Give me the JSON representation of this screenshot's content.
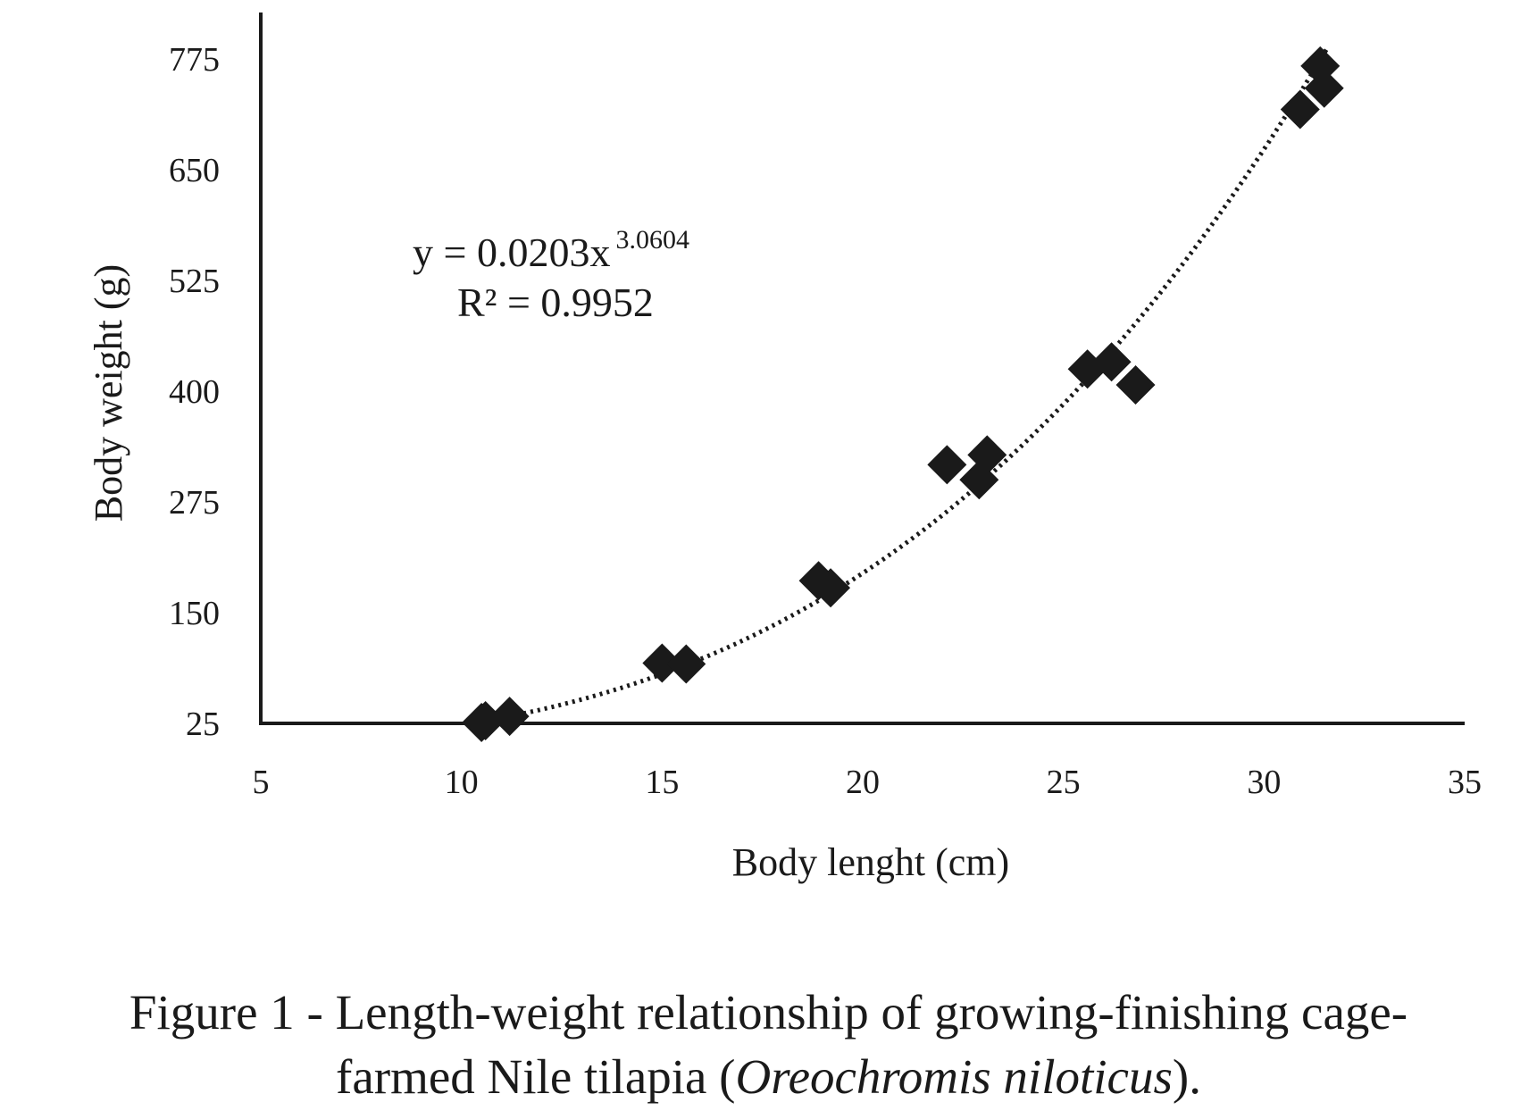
{
  "chart_data": {
    "type": "scatter",
    "xlabel": "Body lenght (cm)",
    "ylabel": "Body weight (g)",
    "xlim": [
      5,
      35
    ],
    "ylim": [
      25,
      775
    ],
    "x_ticks": [
      "5",
      "10",
      "15",
      "20",
      "25",
      "30",
      "35"
    ],
    "y_ticks": [
      "25",
      "150",
      "275",
      "400",
      "525",
      "650",
      "775"
    ],
    "grid": false,
    "legend": "none",
    "series": [
      {
        "marker": "diamond",
        "color": "#1a1a1a",
        "points": [
          {
            "x": 10.5,
            "y": 26
          },
          {
            "x": 10.6,
            "y": 28
          },
          {
            "x": 11.2,
            "y": 33
          },
          {
            "x": 15.0,
            "y": 93
          },
          {
            "x": 15.6,
            "y": 92
          },
          {
            "x": 18.9,
            "y": 186
          },
          {
            "x": 19.2,
            "y": 178
          },
          {
            "x": 22.1,
            "y": 317
          },
          {
            "x": 22.9,
            "y": 300
          },
          {
            "x": 23.1,
            "y": 328
          },
          {
            "x": 25.6,
            "y": 425
          },
          {
            "x": 26.2,
            "y": 433
          },
          {
            "x": 26.8,
            "y": 407
          },
          {
            "x": 30.9,
            "y": 718
          },
          {
            "x": 31.4,
            "y": 767
          },
          {
            "x": 31.5,
            "y": 742
          }
        ]
      }
    ],
    "trendline": {
      "type": "power",
      "style": "dotted",
      "coefficient": 0.0203,
      "exponent": 3.0604,
      "x_range": [
        10.5,
        31.6
      ],
      "equation": "y = 0.0203x",
      "equation_exponent": "3.0604",
      "r_squared": "R² = 0.9952"
    }
  },
  "caption": {
    "line1": "Figure 1 - Length-weight relationship of growing-finishing cage-",
    "line2_prefix": "farmed Nile tilapia (",
    "line2_italic": "Oreochromis niloticus",
    "line2_suffix": ")."
  }
}
